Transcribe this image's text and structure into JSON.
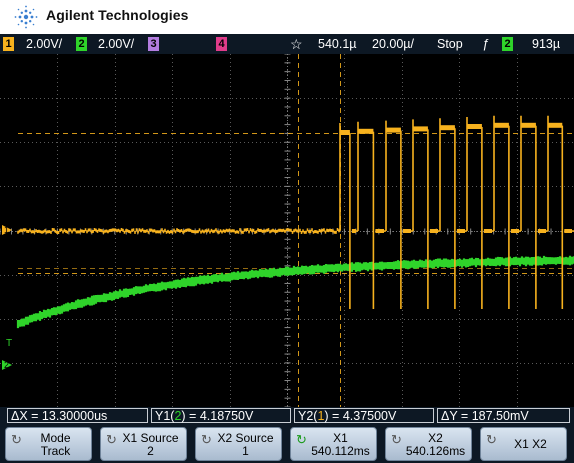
{
  "header": {
    "brand": "Agilent Technologies",
    "logo_icon": "agilent-spark-logo"
  },
  "status": {
    "ch1": {
      "num": "1",
      "scale": "2.00V/",
      "color": "#f7b21e"
    },
    "ch2": {
      "num": "2",
      "scale": "2.00V/",
      "color": "#2fd42a"
    },
    "ch3": {
      "num": "3",
      "color": "#b37de0"
    },
    "ch4": {
      "num": "4",
      "color": "#e03c8a"
    },
    "delay": "540.1µ",
    "timebase": "20.00µ/",
    "run_state": "Stop",
    "trigger_slope": "ƒ",
    "trigger_source": "2",
    "trigger_level": "913µ"
  },
  "measurements": {
    "dx": "ΔX = 13.30000us",
    "y1": {
      "prefix": "Y1(",
      "ch": "2",
      "suffix": ") = 4.18750V"
    },
    "y2": {
      "prefix": "Y2(",
      "ch": "1",
      "suffix": ") = 4.37500V"
    },
    "dy": "ΔY = 187.50mV"
  },
  "softkeys": [
    {
      "name": "mode",
      "line1": "Mode",
      "line2": "Track"
    },
    {
      "name": "x1-source",
      "line1": "X1 Source",
      "line2": "2"
    },
    {
      "name": "x2-source",
      "line1": "X2 Source",
      "line2": "1"
    },
    {
      "name": "x1",
      "line1": "X1",
      "line2": "540.112ms"
    },
    {
      "name": "x2",
      "line1": "X2",
      "line2": "540.126ms"
    },
    {
      "name": "x1x2",
      "line1": "X1 X2"
    }
  ],
  "markers": {
    "ch1_ground": "1",
    "trigger_level_marker": "T",
    "ch2_ground": "2"
  },
  "colors": {
    "ch1": "#f7b21e",
    "ch2": "#2fd42a",
    "grid": "#5a5a5a",
    "background": "#000000",
    "bar": "#0d1824"
  }
}
